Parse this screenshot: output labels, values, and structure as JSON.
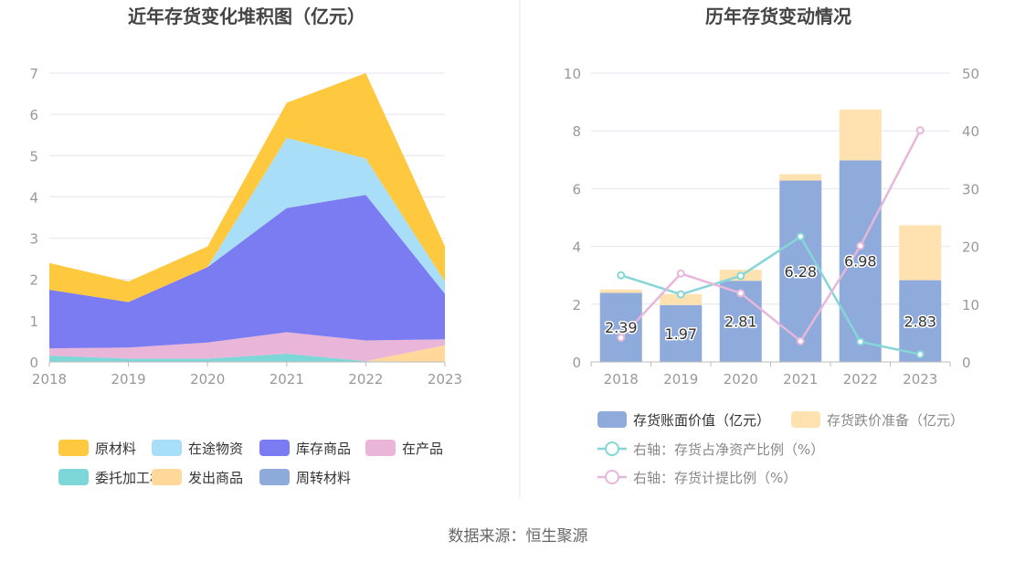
{
  "source_text": "数据来源：恒生聚源",
  "colors": {
    "raw_materials": "#FFC93F",
    "in_transit": "#A8DEF8",
    "inventory_goods": "#7B7CF2",
    "wip": "#E9B5D8",
    "consignment": "#7DD6D8",
    "shipped_goods": "#FFD89A",
    "turnover_materials": "#8EABDB",
    "book_value": "#8EABDB",
    "impairment": "#FFE2B0",
    "line_ratio": "#86D6D8",
    "line_provision": "#E6B7DA",
    "grid": "#E3E6F0",
    "axis_text": "#999999"
  },
  "chart_data": [
    {
      "type": "area",
      "title": "近年存货变化堆积图（亿元）",
      "x": [
        "2018",
        "2019",
        "2020",
        "2021",
        "2022",
        "2023"
      ],
      "stacked": true,
      "ylim": [
        0,
        7
      ],
      "yticks": [
        0,
        1,
        2,
        3,
        4,
        5,
        6,
        7
      ],
      "grid": true,
      "legend_position": "bottom",
      "series": [
        {
          "name": "委托加工材料",
          "color_key": "consignment",
          "values": [
            0.15,
            0.08,
            0.08,
            0.2,
            0.02,
            0.0
          ]
        },
        {
          "name": "发出商品",
          "color_key": "shipped_goods",
          "values": [
            0.0,
            0.0,
            0.0,
            0.0,
            0.0,
            0.4
          ]
        },
        {
          "name": "周转材料",
          "color_key": "turnover_materials",
          "values": [
            0.0,
            0.0,
            0.0,
            0.0,
            0.0,
            0.0
          ]
        },
        {
          "name": "在产品",
          "color_key": "wip",
          "values": [
            0.18,
            0.27,
            0.39,
            0.52,
            0.5,
            0.15
          ]
        },
        {
          "name": "库存商品",
          "color_key": "inventory_goods",
          "values": [
            1.42,
            1.1,
            1.83,
            3.01,
            3.53,
            1.1
          ]
        },
        {
          "name": "在途物资",
          "color_key": "in_transit",
          "values": [
            0.0,
            0.0,
            0.0,
            1.7,
            0.88,
            0.3
          ]
        },
        {
          "name": "原材料",
          "color_key": "raw_materials",
          "values": [
            0.65,
            0.5,
            0.5,
            0.85,
            2.07,
            0.85
          ]
        }
      ],
      "legend": [
        {
          "name": "原材料",
          "color_key": "raw_materials"
        },
        {
          "name": "在途物资",
          "color_key": "in_transit"
        },
        {
          "name": "库存商品",
          "color_key": "inventory_goods"
        },
        {
          "name": "在产品",
          "color_key": "wip"
        },
        {
          "name": "委托加工材料",
          "color_key": "consignment"
        },
        {
          "name": "发出商品",
          "color_key": "shipped_goods"
        },
        {
          "name": "周转材料",
          "color_key": "turnover_materials"
        }
      ]
    },
    {
      "type": "bar",
      "title": "历年存货变动情况",
      "x": [
        "2018",
        "2019",
        "2020",
        "2021",
        "2022",
        "2023"
      ],
      "stacked": true,
      "ylim": [
        0,
        10
      ],
      "yticks": [
        0,
        2,
        4,
        6,
        8,
        10
      ],
      "y2lim": [
        0,
        50
      ],
      "y2ticks": [
        0,
        10,
        20,
        30,
        40,
        50
      ],
      "grid": true,
      "legend_position": "bottom",
      "bar_series": [
        {
          "name": "存货账面价值（亿元）",
          "color_key": "book_value",
          "values": [
            2.39,
            1.97,
            2.81,
            6.28,
            6.98,
            2.83
          ],
          "labels": [
            "2.39",
            "1.97",
            "2.81",
            "6.28",
            "6.98",
            "2.83"
          ]
        },
        {
          "name": "存货跌价准备（亿元）",
          "color_key": "impairment",
          "values": [
            0.12,
            0.38,
            0.38,
            0.22,
            1.76,
            1.9
          ]
        }
      ],
      "line_series": [
        {
          "name": "右轴：存货占净资产比例（%）",
          "color_key": "line_ratio",
          "axis": "right",
          "values": [
            15.0,
            11.7,
            14.9,
            21.7,
            3.5,
            1.3
          ]
        },
        {
          "name": "右轴：存货计提比例（%）",
          "color_key": "line_provision",
          "axis": "right",
          "values": [
            4.2,
            15.3,
            11.9,
            3.6,
            20.1,
            40.1
          ]
        }
      ]
    }
  ]
}
